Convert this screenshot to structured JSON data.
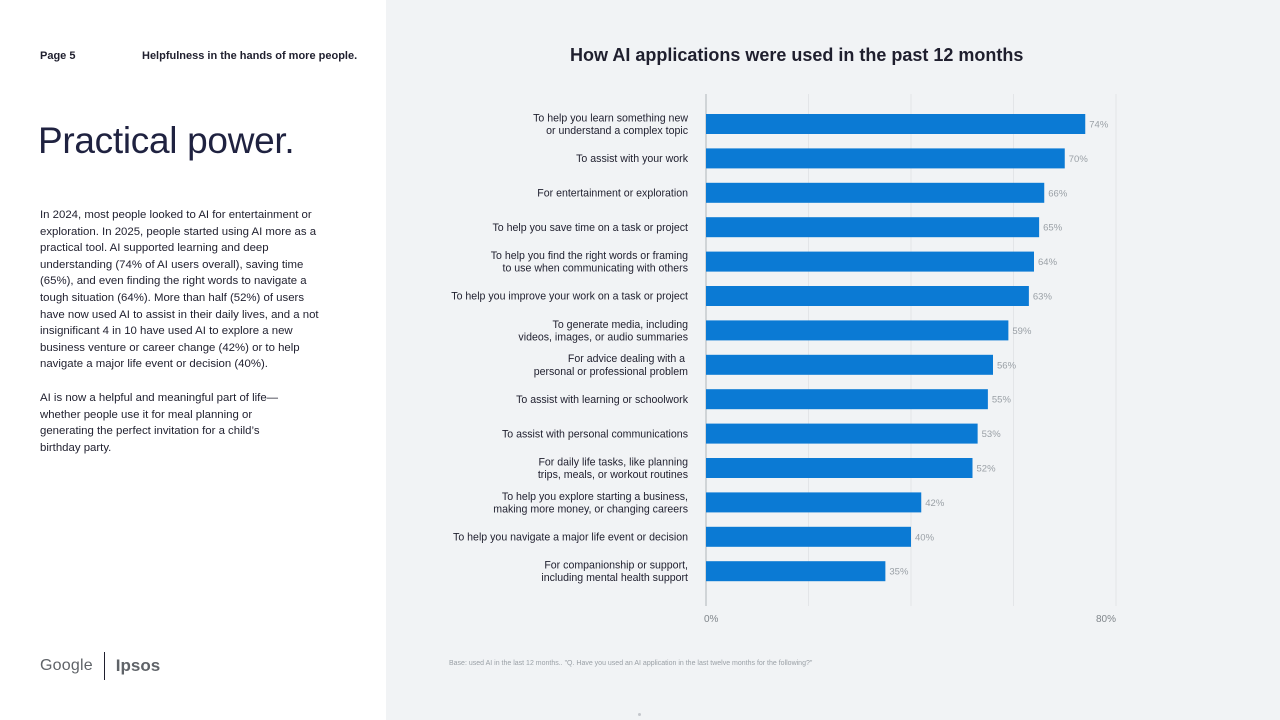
{
  "header": {
    "page_number": "Page 5",
    "tagline": "Helpfulness in the hands of more people."
  },
  "main": {
    "title": "Practical power.",
    "paragraph_1": "In 2024, most people looked to AI for entertainment or exploration. In 2025, people started using AI more as a practical tool. AI supported learning and deep understanding (74% of AI users overall), saving time (65%), and even finding the right words to navigate a tough situation (64%). More than half (52%) of users have now used AI to assist in their daily lives, and a not insignificant 4 in 10 have used AI to explore a new business venture or career change (42%) or to help navigate a major life event or decision (40%).",
    "paragraph_2": "AI is now a helpful and meaningful part of life—whether people use it for meal planning or generating the perfect invitation for a child’s birthday party."
  },
  "logos": {
    "google": "Google",
    "ipsos": "Ipsos"
  },
  "footnote": "Base: used AI in the last 12 months.. \"Q. Have you used an AI application in the last twelve months for the following?\"",
  "colors": {
    "bar": "#0b7ad4",
    "panel_background": "#f1f3f5",
    "gridline": "#e3e5e8"
  },
  "chart_data": {
    "type": "bar",
    "orientation": "horizontal",
    "title": "How AI applications were used in the past 12 months",
    "categories": [
      [
        "To help you learn something new",
        "or understand a complex topic"
      ],
      [
        "To assist with your work"
      ],
      [
        "For entertainment or exploration"
      ],
      [
        "To help you save time on a task or project"
      ],
      [
        "To help you find the right words or framing",
        "to use when communicating with others"
      ],
      [
        "To help you improve your work on a task or project"
      ],
      [
        "To generate media, including",
        "videos, images, or audio summaries"
      ],
      [
        "For advice dealing with a ",
        "personal or professional problem"
      ],
      [
        "To assist with learning or schoolwork"
      ],
      [
        "To assist with personal communications"
      ],
      [
        "For daily life tasks, like planning",
        "trips, meals, or workout routines"
      ],
      [
        "To help you explore starting a business,",
        "making more money, or changing careers"
      ],
      [
        "To help you navigate a major life event or decision"
      ],
      [
        "For companionship or support,",
        "including mental health support"
      ]
    ],
    "values": [
      74,
      70,
      66,
      65,
      64,
      63,
      59,
      56,
      55,
      53,
      52,
      42,
      40,
      35
    ],
    "value_labels": [
      "74%",
      "70%",
      "66%",
      "65%",
      "64%",
      "63%",
      "59%",
      "56%",
      "55%",
      "53%",
      "52%",
      "42%",
      "40%",
      "35%"
    ],
    "xlim": [
      0,
      80
    ],
    "x_tick_labels": [
      "0%",
      "80%"
    ],
    "grid": true,
    "legend": "none"
  }
}
